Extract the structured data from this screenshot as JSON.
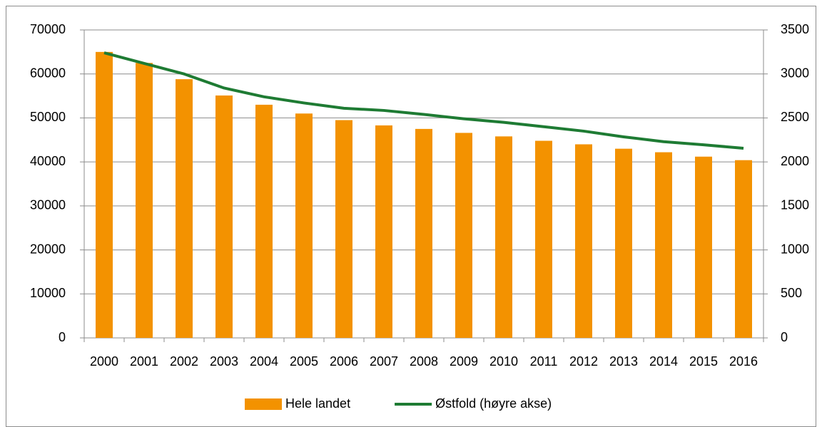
{
  "chart_data": {
    "type": "bar_line",
    "categories": [
      "2000",
      "2001",
      "2002",
      "2003",
      "2004",
      "2005",
      "2006",
      "2007",
      "2008",
      "2009",
      "2010",
      "2011",
      "2012",
      "2013",
      "2014",
      "2015",
      "2016"
    ],
    "series": [
      {
        "name": "Hele landet",
        "color": "#f39200",
        "type": "bar",
        "values": [
          65000,
          62500,
          58800,
          55100,
          53000,
          51000,
          49500,
          48300,
          47500,
          46600,
          45800,
          44800,
          44000,
          43000,
          42200,
          41200,
          40400
        ]
      },
      {
        "name": "Østfold (høyre akse)",
        "color": "#1e7b33",
        "type": "line",
        "axis": "y2",
        "values": [
          3240,
          3120,
          3000,
          2840,
          2740,
          2670,
          2610,
          2585,
          2540,
          2490,
          2450,
          2400,
          2350,
          2285,
          2230,
          2195,
          2155
        ]
      }
    ],
    "ylim": [
      0,
      70000
    ],
    "yticks": [
      0,
      10000,
      20000,
      30000,
      40000,
      50000,
      60000,
      70000
    ],
    "y2lim": [
      0,
      3500
    ],
    "y2ticks": [
      0,
      500,
      1000,
      1500,
      2000,
      2500,
      3000,
      3500
    ],
    "grid": true,
    "legend": "bottom"
  }
}
